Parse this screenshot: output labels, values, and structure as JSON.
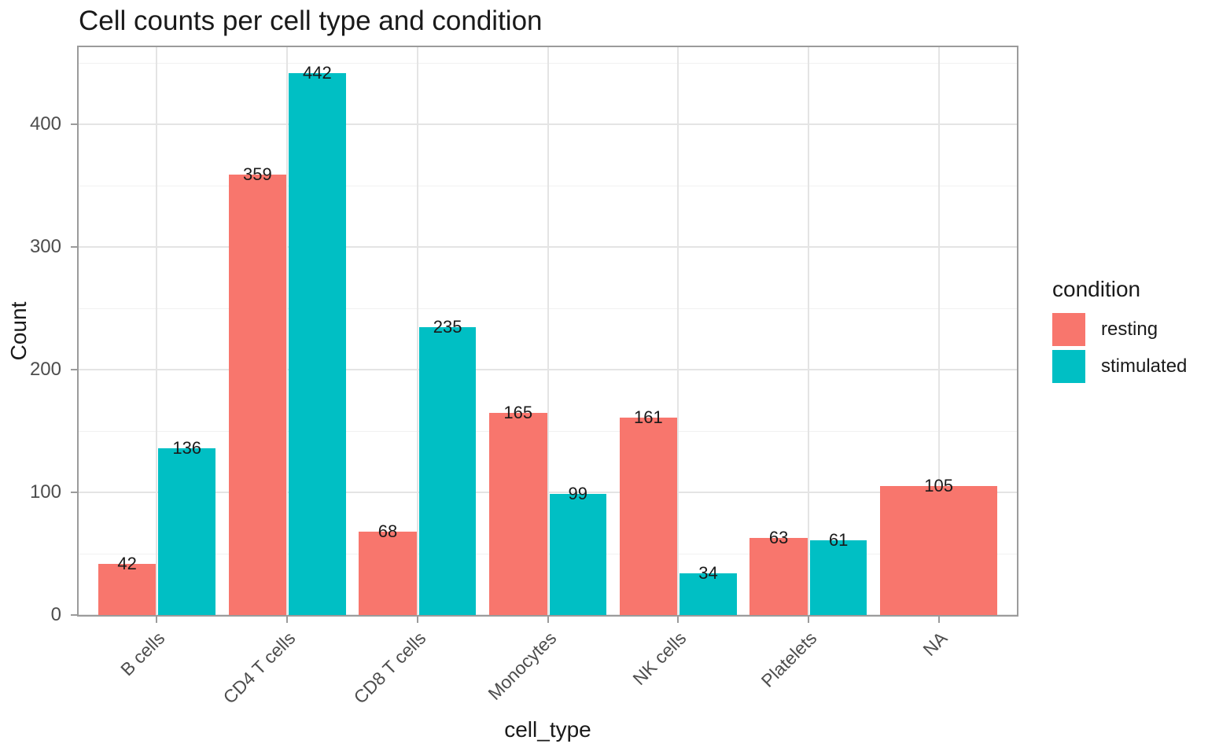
{
  "title": "Cell counts per cell type and condition",
  "axes": {
    "x_title": "cell_type",
    "y_title": "Count",
    "y_tick_labels": [
      "0",
      "100",
      "200",
      "300",
      "400"
    ]
  },
  "legend": {
    "title": "condition",
    "items": [
      {
        "label": "resting",
        "color": "#F8766D"
      },
      {
        "label": "stimulated",
        "color": "#00BFC4"
      }
    ]
  },
  "chart_data": {
    "type": "bar",
    "title": "Cell counts per cell type and condition",
    "xlabel": "cell_type",
    "ylabel": "Count",
    "categories": [
      "B cells",
      "CD4 T cells",
      "CD8 T cells",
      "Monocytes",
      "NK cells",
      "Platelets",
      "NA"
    ],
    "series": [
      {
        "name": "resting",
        "color": "#F8766D",
        "values": [
          42,
          359,
          68,
          165,
          161,
          63,
          105
        ]
      },
      {
        "name": "stimulated",
        "color": "#00BFC4",
        "values": [
          136,
          442,
          235,
          99,
          34,
          61,
          null
        ]
      }
    ],
    "bar_value_labels_shown": true,
    "ylim": [
      0,
      463
    ],
    "y_major_gridlines": [
      0,
      100,
      200,
      300,
      400
    ],
    "y_minor_gridlines": [
      50,
      150,
      250,
      350,
      450
    ],
    "grid": true,
    "legend_position": "right",
    "x_tick_angle_deg": 45
  }
}
